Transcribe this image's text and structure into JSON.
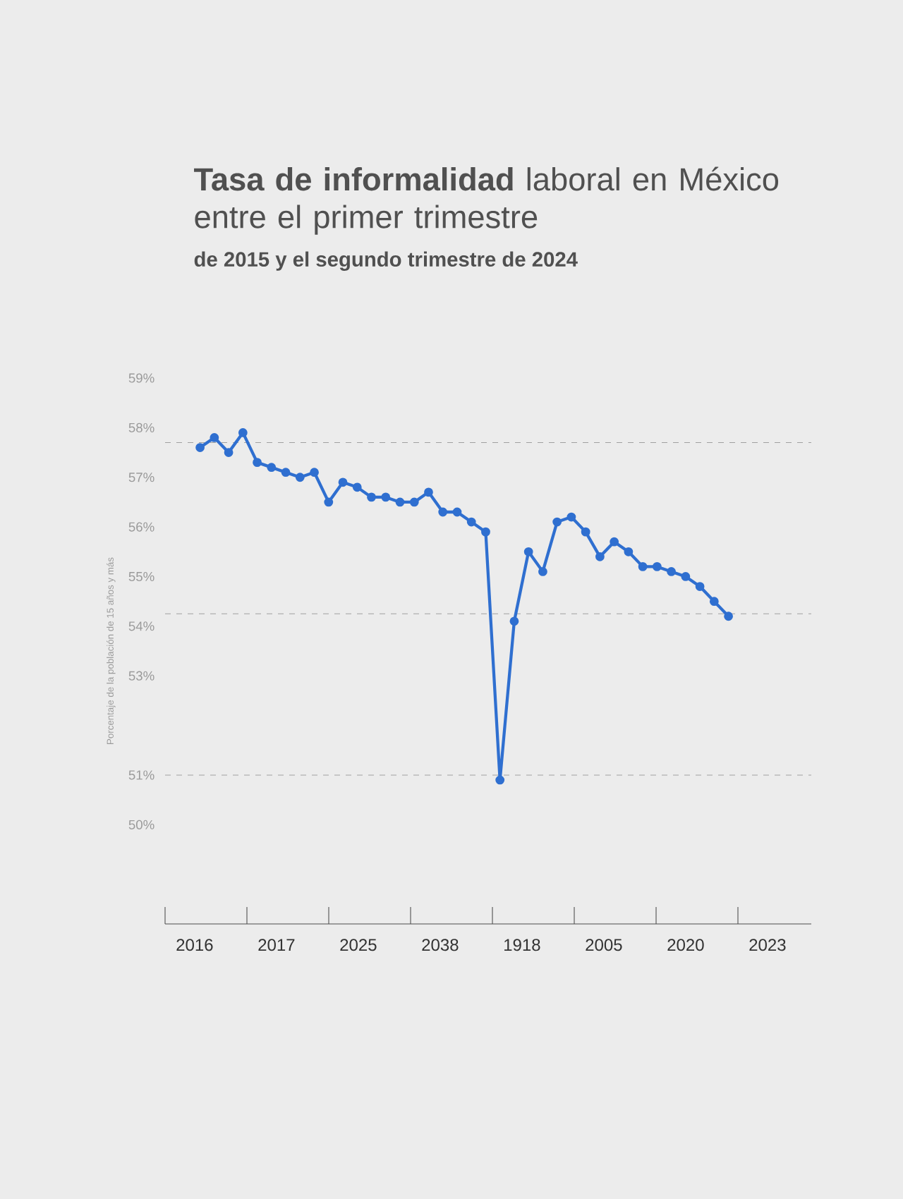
{
  "chart_data": {
    "type": "line",
    "title": "**Tasa de informalidad** laboral en México entre el primer trimestre",
    "subtitle": "de 2015 y el segundo trimestre de 2024",
    "ylabel": "Porcentaje de la población de 15 años y más",
    "categories": [
      null,
      null,
      null,
      null,
      null,
      null,
      null,
      null,
      null,
      null,
      null,
      null,
      null,
      null,
      null,
      null,
      null,
      null,
      null,
      null,
      null,
      null,
      null,
      null,
      null,
      null,
      null,
      null,
      null,
      null,
      null,
      null,
      null,
      null,
      null,
      null,
      null,
      null
    ],
    "annotations": [
      "2016",
      "2017",
      "2025",
      "2038",
      "1918",
      "2005",
      "2020",
      "2023"
    ],
    "series": [
      {
        "color": "#2f6fd0",
        "values": [
          57.6,
          57.8,
          57.5,
          57.9,
          57.3,
          57.2,
          57.1,
          57.0,
          57.1,
          56.5,
          56.9,
          56.8,
          56.6,
          56.6,
          56.5,
          56.5,
          56.7,
          56.3,
          56.3,
          56.1,
          55.9,
          50.9,
          54.1,
          55.5,
          55.1,
          56.1,
          56.2,
          55.9,
          55.4,
          55.7,
          55.5,
          55.2,
          55.2,
          55.1,
          55.0,
          54.8,
          54.5,
          54.2
        ]
      }
    ],
    "marker": "circle",
    "line_style": "solid",
    "ylim": [
      48,
      59
    ],
    "yticks": [
      {
        "value": 50,
        "label": "50%"
      },
      {
        "value": 51,
        "label": "51%"
      },
      {
        "value": 53,
        "label": "53%"
      },
      {
        "value": 54,
        "label": "54%"
      },
      {
        "value": 55,
        "label": "55%"
      },
      {
        "value": 56,
        "label": "56%"
      },
      {
        "value": 57,
        "label": "57%"
      },
      {
        "value": 58,
        "label": "58%"
      },
      {
        "value": 59,
        "label": "59%"
      }
    ],
    "ref_lines": [
      {
        "axis": "y",
        "value": 57.7,
        "line_style": "dashed"
      },
      {
        "axis": "y",
        "value": 54.25,
        "line_style": "dashed"
      },
      {
        "axis": "y",
        "value": 51.0,
        "line_style": "dashed"
      }
    ]
  }
}
